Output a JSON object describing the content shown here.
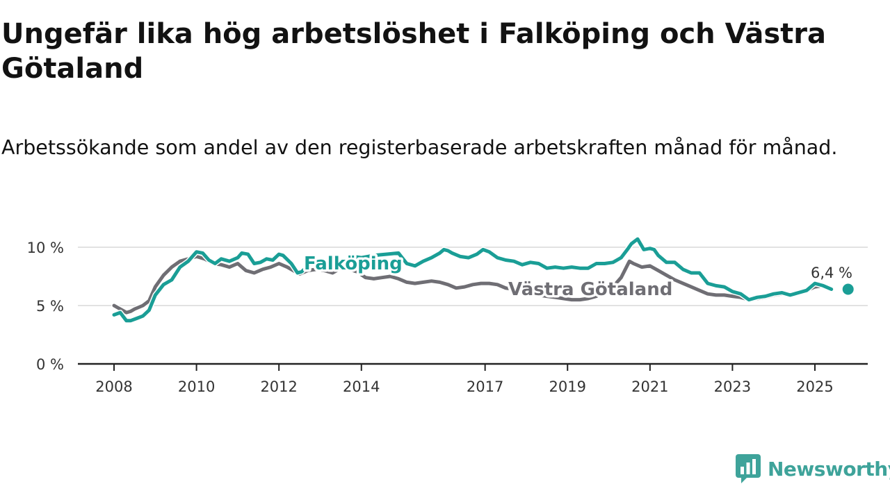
{
  "title": "Ungefär lika hög arbetslöshet i Falköping och Västra Götaland",
  "subtitle": "Arbetssökande som andel av den registerbaserade arbetskraften månad för månad.",
  "brand": "Newsworthy",
  "colors": {
    "falkoping": "#1a9e96",
    "vastra_gotaland": "#6f6e74",
    "grid": "#d8d8d8",
    "axis": "#222222",
    "brand": "#3ea39a"
  },
  "end_label": "6,4 %",
  "chart_data": {
    "type": "line",
    "xlim": [
      2008,
      2025.7
    ],
    "ylim": [
      0,
      10
    ],
    "y_ticks": [
      {
        "value": 0,
        "label": "0 %"
      },
      {
        "value": 5,
        "label": "5 %"
      },
      {
        "value": 10,
        "label": "10 %"
      }
    ],
    "x_ticks": [
      {
        "value": 2008,
        "label": "2008"
      },
      {
        "value": 2010,
        "label": "2010"
      },
      {
        "value": 2012,
        "label": "2012"
      },
      {
        "value": 2014,
        "label": "2014"
      },
      {
        "value": 2017,
        "label": "2017"
      },
      {
        "value": 2019,
        "label": "2019"
      },
      {
        "value": 2021,
        "label": "2021"
      },
      {
        "value": 2023,
        "label": "2023"
      },
      {
        "value": 2025,
        "label": "2025"
      }
    ],
    "series": [
      {
        "name": "Västra Götaland",
        "key": "vastra_gotaland",
        "x": [
          2008.0,
          2008.2,
          2008.3,
          2008.4,
          2008.5,
          2008.7,
          2008.85,
          2009.0,
          2009.2,
          2009.4,
          2009.6,
          2009.8,
          2010.0,
          2010.2,
          2010.4,
          2010.6,
          2010.8,
          2011.0,
          2011.2,
          2011.4,
          2011.6,
          2011.8,
          2012.0,
          2012.2,
          2012.4,
          2012.5,
          2012.7,
          2012.9,
          2013.1,
          2013.3,
          2013.5,
          2013.7,
          2013.9,
          2014.1,
          2014.3,
          2014.5,
          2014.7,
          2014.9,
          2015.1,
          2015.3,
          2015.5,
          2015.7,
          2015.9,
          2016.1,
          2016.3,
          2016.5,
          2016.7,
          2016.9,
          2017.1,
          2017.3,
          2017.5,
          2017.7,
          2017.9,
          2018.1,
          2018.3,
          2018.5,
          2018.7,
          2018.9,
          2019.1,
          2019.3,
          2019.5,
          2019.7,
          2019.9,
          2020.1,
          2020.3,
          2020.5,
          2020.6,
          2020.8,
          2021.0,
          2021.2,
          2021.4,
          2021.6,
          2021.8,
          2022.0,
          2022.2,
          2022.4,
          2022.6,
          2022.8,
          2023.0,
          2023.2,
          2023.4,
          2023.6,
          2023.8,
          2024.0,
          2024.2,
          2024.4,
          2024.6,
          2024.8,
          2025.0,
          2025.2,
          2025.4
        ],
        "values": [
          5.0,
          4.6,
          4.4,
          4.5,
          4.7,
          5.0,
          5.4,
          6.6,
          7.6,
          8.3,
          8.8,
          9.0,
          9.2,
          9.0,
          8.6,
          8.5,
          8.3,
          8.6,
          8.0,
          7.8,
          8.1,
          8.3,
          8.6,
          8.3,
          7.9,
          7.7,
          8.0,
          8.1,
          8.0,
          7.8,
          8.2,
          8.1,
          7.9,
          7.4,
          7.3,
          7.4,
          7.5,
          7.3,
          7.0,
          6.9,
          7.0,
          7.1,
          7.0,
          6.8,
          6.5,
          6.6,
          6.8,
          6.9,
          6.9,
          6.8,
          6.5,
          6.4,
          6.3,
          6.1,
          5.9,
          5.8,
          5.7,
          5.6,
          5.5,
          5.5,
          5.6,
          5.8,
          6.2,
          6.6,
          7.4,
          8.8,
          8.6,
          8.3,
          8.4,
          8.0,
          7.6,
          7.2,
          6.9,
          6.6,
          6.3,
          6.0,
          5.9,
          5.9,
          5.8,
          5.7,
          5.5,
          5.6,
          5.7,
          5.9,
          6.0,
          6.0,
          6.1,
          6.3,
          6.6,
          6.7,
          6.4
        ]
      },
      {
        "name": "Falköping",
        "key": "falkoping",
        "x": [
          2008.0,
          2008.15,
          2008.3,
          2008.4,
          2008.55,
          2008.7,
          2008.85,
          2009.0,
          2009.2,
          2009.4,
          2009.6,
          2009.8,
          2010.0,
          2010.15,
          2010.3,
          2010.45,
          2010.6,
          2010.8,
          2011.0,
          2011.1,
          2011.25,
          2011.4,
          2011.55,
          2011.7,
          2011.85,
          2012.0,
          2012.1,
          2012.3,
          2012.45,
          2012.55,
          2012.7,
          2012.85,
          2013.0,
          2013.2,
          2013.4,
          2013.6,
          2013.8,
          2014.0,
          2014.3,
          2014.6,
          2014.9,
          2015.1,
          2015.3,
          2015.5,
          2015.7,
          2015.9,
          2016.0,
          2016.1,
          2016.2,
          2016.4,
          2016.6,
          2016.8,
          2016.95,
          2017.1,
          2017.3,
          2017.5,
          2017.7,
          2017.9,
          2018.1,
          2018.3,
          2018.5,
          2018.7,
          2018.9,
          2019.1,
          2019.3,
          2019.5,
          2019.7,
          2019.9,
          2020.1,
          2020.3,
          2020.45,
          2020.55,
          2020.7,
          2020.85,
          2021.0,
          2021.1,
          2021.2,
          2021.4,
          2021.6,
          2021.8,
          2022.0,
          2022.2,
          2022.4,
          2022.6,
          2022.8,
          2023.0,
          2023.2,
          2023.4,
          2023.6,
          2023.8,
          2024.0,
          2024.2,
          2024.4,
          2024.6,
          2024.8,
          2025.0,
          2025.2,
          2025.4
        ],
        "values": [
          4.2,
          4.4,
          3.7,
          3.7,
          3.9,
          4.1,
          4.6,
          5.9,
          6.8,
          7.2,
          8.3,
          8.8,
          9.6,
          9.5,
          8.9,
          8.6,
          9.0,
          8.8,
          9.1,
          9.5,
          9.4,
          8.6,
          8.7,
          9.0,
          8.9,
          9.4,
          9.3,
          8.6,
          7.8,
          7.9,
          8.4,
          8.6,
          8.7,
          8.9,
          8.6,
          8.9,
          9.2,
          9.1,
          9.3,
          9.4,
          9.5,
          8.6,
          8.4,
          8.8,
          9.1,
          9.5,
          9.8,
          9.7,
          9.5,
          9.2,
          9.1,
          9.4,
          9.8,
          9.6,
          9.1,
          8.9,
          8.8,
          8.5,
          8.7,
          8.6,
          8.2,
          8.3,
          8.2,
          8.3,
          8.2,
          8.2,
          8.6,
          8.6,
          8.7,
          9.1,
          9.8,
          10.3,
          10.7,
          9.8,
          9.9,
          9.8,
          9.3,
          8.7,
          8.7,
          8.1,
          7.8,
          7.8,
          6.9,
          6.7,
          6.6,
          6.2,
          6.0,
          5.5,
          5.7,
          5.8,
          6.0,
          6.1,
          5.9,
          6.1,
          6.3,
          6.9,
          6.7,
          6.4
        ]
      }
    ]
  }
}
